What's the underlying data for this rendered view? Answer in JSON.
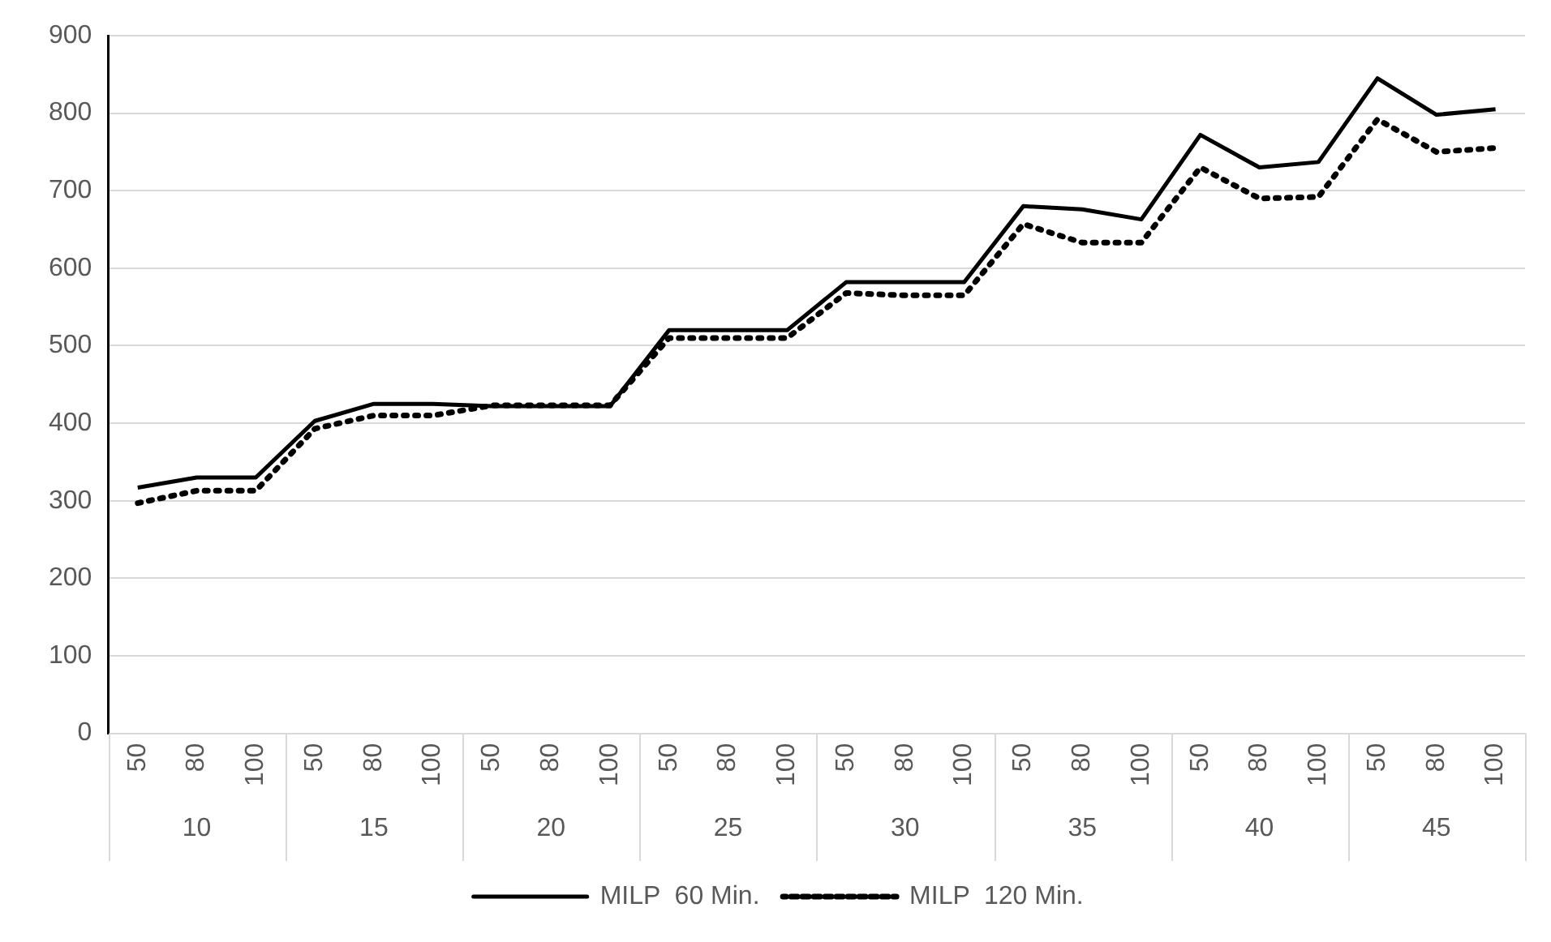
{
  "chart_data": {
    "type": "line",
    "categories": [
      "50",
      "80",
      "100",
      "50",
      "80",
      "100",
      "50",
      "80",
      "100",
      "50",
      "80",
      "100",
      "50",
      "80",
      "100",
      "50",
      "80",
      "100",
      "50",
      "80",
      "100",
      "50",
      "80",
      "100"
    ],
    "annotations": [
      "10",
      "15",
      "20",
      "25",
      "30",
      "35",
      "40",
      "45"
    ],
    "series": [
      {
        "name": "MILP  60 Min.",
        "color": "#000000",
        "line_style": "solid",
        "values": [
          317,
          330,
          330,
          403,
          425,
          425,
          422,
          422,
          422,
          520,
          520,
          520,
          582,
          582,
          582,
          680,
          676,
          663,
          772,
          730,
          737,
          845,
          798,
          805
        ]
      },
      {
        "name": "MILP  120 Min.",
        "color": "#000000",
        "line_style": "dotted",
        "values": [
          297,
          313,
          313,
          393,
          410,
          410,
          423,
          423,
          423,
          510,
          510,
          510,
          568,
          565,
          565,
          657,
          633,
          633,
          730,
          690,
          692,
          792,
          750,
          755
        ]
      }
    ],
    "ylim": [
      0,
      900
    ],
    "yticks": [
      0,
      100,
      200,
      300,
      400,
      500,
      600,
      700,
      800,
      900
    ],
    "grid": "y",
    "legend": "bottom",
    "marker": "none"
  }
}
